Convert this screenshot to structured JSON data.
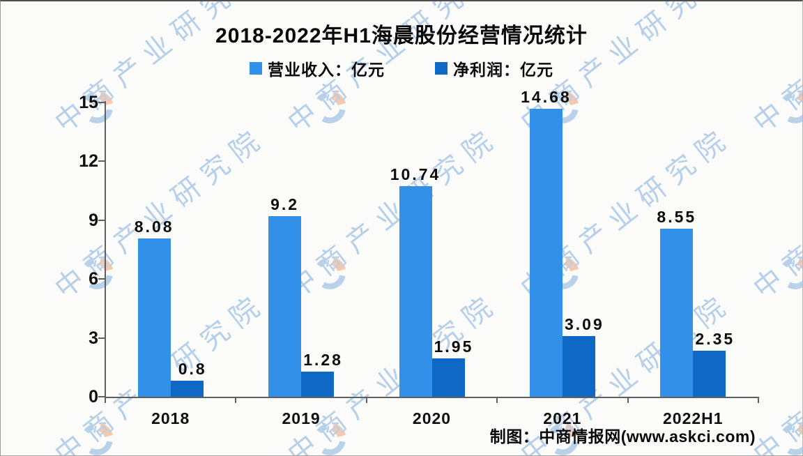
{
  "title": "2018-2022年H1海晨股份经营情况统计",
  "legend": [
    {
      "label": "营业收入：亿元",
      "color": "#3390E8"
    },
    {
      "label": "净利润：亿元",
      "color": "#0F68C6"
    }
  ],
  "source": "制图：中商情报网(www.askci.com)",
  "watermark": {
    "text": "中商产业研究院",
    "logo_icon": "askci-circle-logo",
    "text_color": "#b7d0ea",
    "logo_blue": "#b9d2ea",
    "logo_orange": "#f6c9ae"
  },
  "chart_data": {
    "type": "bar",
    "title": "2018-2022年H1海晨股份经营情况统计",
    "categories": [
      "2018",
      "2019",
      "2020",
      "2021",
      "2022H1"
    ],
    "series": [
      {
        "name": "营业收入：亿元",
        "color": "#3390E8",
        "values": [
          8.08,
          9.2,
          10.74,
          14.68,
          8.55
        ],
        "labels": [
          "8.08",
          "9.2",
          "10.74",
          "14.68",
          "8.55"
        ]
      },
      {
        "name": "净利润：亿元",
        "color": "#0F68C6",
        "values": [
          0.8,
          1.28,
          1.95,
          3.09,
          2.35
        ],
        "labels": [
          "0.8",
          "1.28",
          "1.95",
          "3.09",
          "2.35"
        ]
      }
    ],
    "xlabel": "",
    "ylabel": "",
    "ylim": [
      0,
      15
    ],
    "yticks": [
      0,
      3,
      6,
      9,
      12,
      15
    ],
    "grid": false,
    "legend_position": "top",
    "value_labels": true
  }
}
